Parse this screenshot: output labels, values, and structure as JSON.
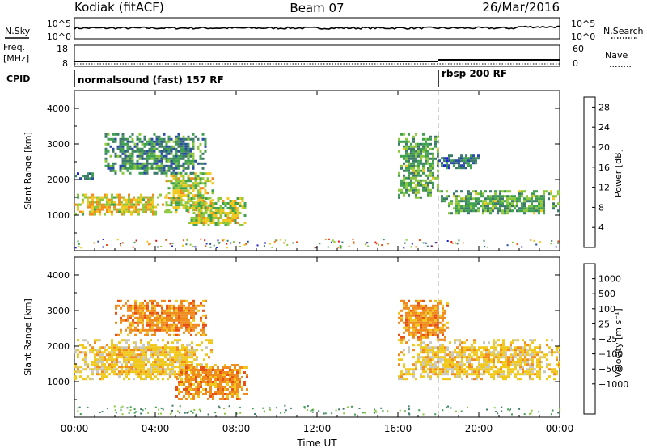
{
  "header": {
    "station": "Kodiak (fitACF)",
    "beam": "Beam 07",
    "date": "26/Mar/2016"
  },
  "top_panel": {
    "left_label": "N.Sky",
    "right_label": "N.Search",
    "left_ticks": [
      "10^5",
      "10^0"
    ],
    "right_ticks": [
      "10^5",
      "10^0"
    ]
  },
  "freq_panel": {
    "left_label_1": "Freq.",
    "left_label_2": "[MHz]",
    "right_label": "Nave",
    "left_ticks": [
      "18",
      "8"
    ],
    "right_ticks": [
      "60",
      "0"
    ]
  },
  "cpid_panel": {
    "label": "CPID",
    "segments": [
      {
        "name": "normalsound (fast) 157 RF",
        "start_hour": 0
      },
      {
        "name": "rbsp 200 RF",
        "start_hour": 18
      }
    ]
  },
  "colors": {
    "power": [
      "#1e22d6",
      "#2a4aa8",
      "#3d7a6a",
      "#3fa050",
      "#8cc83c",
      "#f0c81e",
      "#f08c1e",
      "#e85014",
      "#e81414"
    ],
    "velocity": [
      "#1e22d6",
      "#2a4aa8",
      "#3d7a6a",
      "#3fa050",
      "#8cc83c",
      "#c8c8be",
      "#f0c81e",
      "#f08c1e",
      "#e85014",
      "#e81414"
    ]
  },
  "chart_data": [
    {
      "type": "heatmap",
      "title": "Power",
      "ylabel": "Slant Range [km]",
      "xlabel": "",
      "xlim": [
        "00:00",
        "24:00"
      ],
      "ylim": [
        0,
        4500
      ],
      "y_ticks": [
        "1000",
        "2000",
        "3000",
        "4000"
      ],
      "colorbar": {
        "label": "Power [dB]",
        "ticks": [
          "4",
          "8",
          "12",
          "16",
          "20",
          "24",
          "28"
        ],
        "range": [
          0,
          30
        ]
      },
      "regions": [
        {
          "t0": 0.0,
          "t1": 4.5,
          "r0": 1050,
          "r1": 1600,
          "level": 18
        },
        {
          "t0": 4.5,
          "t1": 6.8,
          "r0": 1100,
          "r1": 2200,
          "level": 16
        },
        {
          "t0": 0.0,
          "t1": 1.0,
          "r0": 2000,
          "r1": 2200,
          "level": 8
        },
        {
          "t0": 1.5,
          "t1": 6.5,
          "r0": 2200,
          "r1": 3300,
          "level": 10
        },
        {
          "t0": 5.5,
          "t1": 8.5,
          "r0": 700,
          "r1": 1500,
          "level": 16
        },
        {
          "t0": 16.0,
          "t1": 18.0,
          "r0": 1500,
          "r1": 3300,
          "level": 12
        },
        {
          "t0": 18.0,
          "t1": 24.0,
          "r0": 1050,
          "r1": 1700,
          "level": 12
        },
        {
          "t0": 18.0,
          "t1": 20.0,
          "r0": 2300,
          "r1": 2700,
          "level": 8
        }
      ]
    },
    {
      "type": "heatmap",
      "title": "Velocity",
      "ylabel": "Slant Range [km]",
      "xlabel": "Time UT",
      "xlim": [
        "00:00",
        "24:00"
      ],
      "ylim": [
        0,
        4500
      ],
      "x_ticks": [
        "00:00",
        "04:00",
        "08:00",
        "12:00",
        "16:00",
        "20:00",
        "00:00"
      ],
      "y_ticks": [
        "1000",
        "2000",
        "3000",
        "4000"
      ],
      "colorbar": {
        "label": "Velocity [m s⁻¹]",
        "ticks": [
          "1000",
          "500",
          "100",
          "25",
          "−25",
          "−100",
          "−500",
          "−1000"
        ]
      },
      "regions": [
        {
          "t0": 0.0,
          "t1": 6.8,
          "r0": 1050,
          "r1": 2200,
          "level": "25"
        },
        {
          "t0": 5.0,
          "t1": 8.5,
          "r0": 500,
          "r1": 1500,
          "level": "100"
        },
        {
          "t0": 2.0,
          "t1": 6.5,
          "r0": 2300,
          "r1": 3300,
          "level": "100"
        },
        {
          "t0": 16.0,
          "t1": 24.0,
          "r0": 1050,
          "r1": 2200,
          "level": "25"
        },
        {
          "t0": 16.0,
          "t1": 18.5,
          "r0": 2200,
          "r1": 3300,
          "level": "100"
        }
      ]
    }
  ]
}
